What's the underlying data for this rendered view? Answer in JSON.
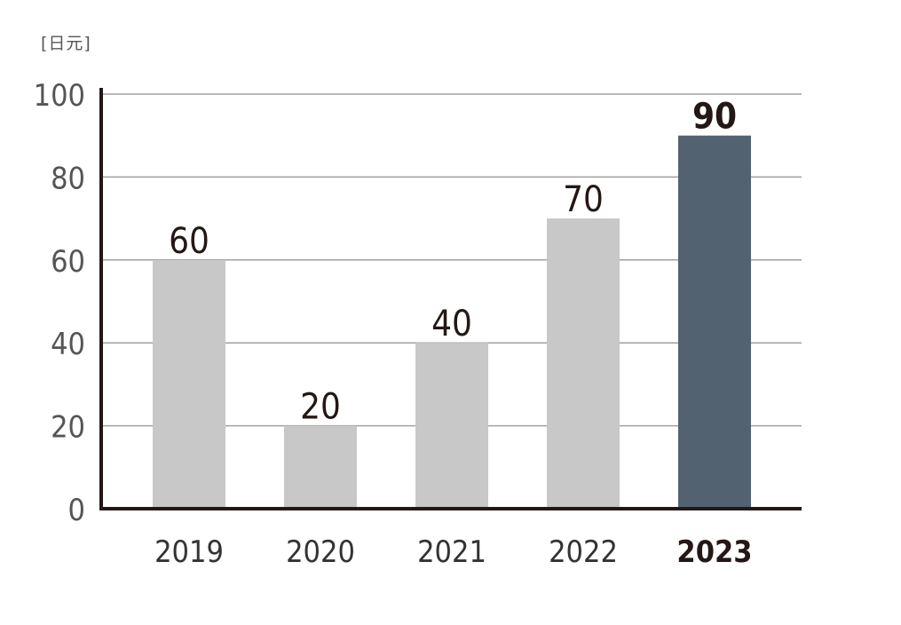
{
  "chart_data": {
    "type": "bar",
    "ylabel": "[日元]",
    "categories": [
      "2019",
      "2020",
      "2021",
      "2022",
      "2023"
    ],
    "values": [
      60,
      20,
      40,
      70,
      90
    ],
    "ylim": [
      0,
      100
    ],
    "yticks": [
      0,
      20,
      40,
      60,
      80,
      100
    ],
    "grid": true,
    "highlight_category": "2023",
    "colors": {
      "bar": "#c8c8c8",
      "highlight_bar": "#536270",
      "axis": "#231815",
      "grid": "#a0a0a0",
      "tick_label": "#555555",
      "value_label": "#231815"
    }
  }
}
